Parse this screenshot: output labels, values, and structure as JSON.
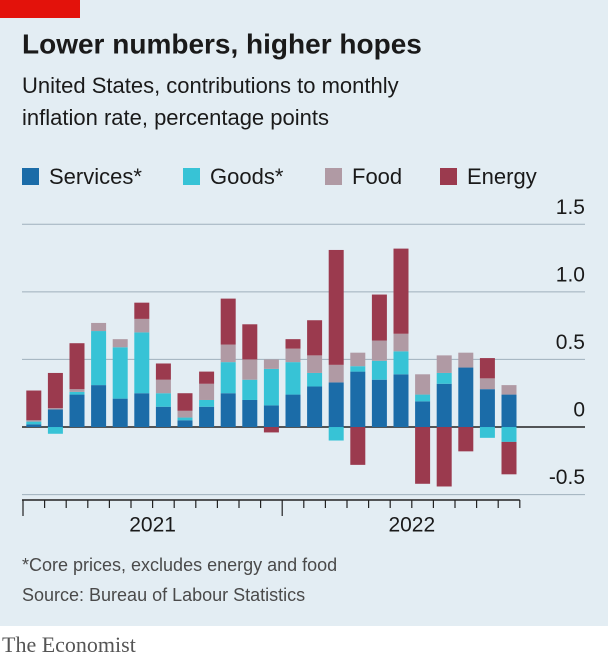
{
  "chart_data": {
    "type": "stacked_bar",
    "title": "Lower numbers, higher hopes",
    "subtitle": [
      "United States, contributions to monthly",
      "inflation rate, percentage points"
    ],
    "categories": [
      null,
      null,
      null,
      null,
      null,
      null,
      null,
      null,
      null,
      null,
      null,
      null,
      null,
      null,
      null,
      null,
      null,
      null,
      null,
      null,
      null,
      null,
      null
    ],
    "year_labels": [
      "2021",
      "2022"
    ],
    "series": [
      {
        "name": "Services*",
        "color": "#1b6ca8",
        "values": [
          0.02,
          0.13,
          0.24,
          0.31,
          0.21,
          0.25,
          0.15,
          0.05,
          0.15,
          0.25,
          0.2,
          0.16,
          0.24,
          0.3,
          0.33,
          0.41,
          0.35,
          0.39,
          0.19,
          0.32,
          0.44,
          0.28,
          0.24
        ]
      },
      {
        "name": "Goods*",
        "color": "#37c3d6",
        "values": [
          0.02,
          -0.05,
          0.02,
          0.4,
          0.38,
          0.45,
          0.1,
          0.02,
          0.05,
          0.23,
          0.15,
          0.27,
          0.24,
          0.1,
          -0.1,
          0.04,
          0.14,
          0.17,
          0.05,
          0.08,
          0.0,
          -0.08,
          -0.11
        ]
      },
      {
        "name": "Food",
        "color": "#b09aa4",
        "values": [
          0.01,
          0.01,
          0.02,
          0.06,
          0.06,
          0.1,
          0.1,
          0.05,
          0.12,
          0.13,
          0.15,
          0.07,
          0.1,
          0.13,
          0.13,
          0.1,
          0.15,
          0.13,
          0.15,
          0.13,
          0.11,
          0.08,
          0.07
        ]
      },
      {
        "name": "Energy",
        "color": "#9b3a4e",
        "values": [
          0.22,
          0.26,
          0.34,
          0.0,
          0.0,
          0.12,
          0.12,
          0.13,
          0.09,
          0.34,
          0.26,
          -0.04,
          0.07,
          0.26,
          0.85,
          -0.28,
          0.34,
          0.63,
          -0.42,
          -0.44,
          -0.18,
          0.15,
          -0.24
        ]
      }
    ],
    "ylim": [
      -0.54,
      1.65
    ],
    "yticks": [
      -0.5,
      0,
      0.5,
      {
        "value": 1,
        "label": "1.0"
      },
      1.5
    ],
    "grid": true,
    "footnote": "*Core prices, excludes energy and food",
    "source": "Source: Bureau of Labour Statistics",
    "brand": "The Economist"
  }
}
